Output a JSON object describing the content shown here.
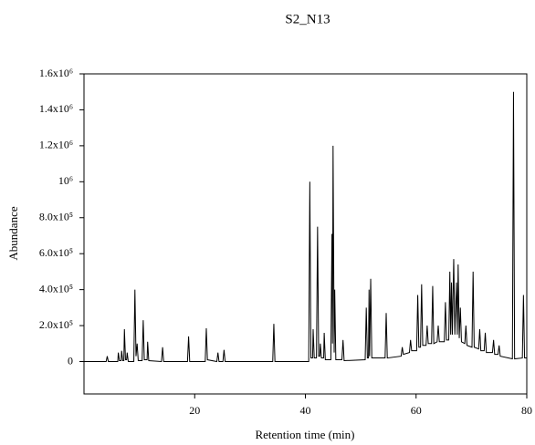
{
  "chart_data": {
    "type": "line",
    "title": "S2_N13",
    "x_label": "Retention time (min)",
    "y_label": "Abundance",
    "color": "#000000",
    "x": [
      0,
      4.0,
      4.2,
      4.4,
      6.1,
      6.2,
      6.4,
      6.7,
      6.8,
      7.0,
      7.2,
      7.3,
      7.5,
      7.7,
      7.8,
      8.0,
      9.0,
      9.2,
      9.4,
      9.6,
      9.8,
      10.5,
      10.7,
      10.9,
      11.4,
      11.5,
      11.7,
      14.0,
      14.2,
      14.4,
      18.7,
      18.9,
      19.1,
      21.9,
      22.1,
      22.3,
      24.0,
      24.2,
      24.4,
      25.1,
      25.3,
      25.5,
      34.1,
      34.3,
      34.5,
      40.6,
      40.8,
      41.0,
      41.3,
      41.4,
      41.6,
      42.0,
      42.2,
      42.4,
      42.6,
      42.7,
      42.9,
      43.3,
      43.4,
      43.6,
      44.6,
      44.8,
      44.9,
      45.0,
      45.2,
      45.3,
      45.5,
      46.6,
      46.8,
      47.0,
      50.8,
      51.0,
      51.2,
      51.4,
      51.5,
      51.6,
      51.8,
      52.0,
      54.4,
      54.6,
      54.8,
      57.3,
      57.5,
      57.7,
      58.8,
      59.0,
      59.2,
      60.1,
      60.3,
      60.5,
      60.8,
      61.0,
      61.2,
      61.8,
      62.0,
      62.2,
      62.8,
      63.0,
      63.2,
      63.8,
      64.0,
      64.2,
      65.1,
      65.3,
      65.5,
      65.9,
      66.1,
      66.25,
      66.4,
      66.55,
      66.8,
      67.0,
      67.3,
      67.45,
      67.6,
      67.8,
      68.0,
      68.2,
      68.8,
      69.0,
      69.2,
      70.1,
      70.3,
      70.5,
      71.3,
      71.5,
      71.7,
      72.3,
      72.5,
      72.7,
      73.8,
      74.0,
      74.2,
      74.8,
      75.0,
      75.2,
      77.4,
      77.6,
      77.8,
      79.2,
      79.4,
      79.6,
      80
    ],
    "values": [
      0,
      0,
      30000,
      0,
      0,
      50000,
      5000,
      5000,
      60000,
      5000,
      5000,
      180000,
      10000,
      10000,
      50000,
      0,
      0,
      400000,
      30000,
      100000,
      5000,
      5000,
      230000,
      10000,
      10000,
      110000,
      5000,
      0,
      80000,
      0,
      0,
      140000,
      0,
      0,
      185000,
      10000,
      0,
      50000,
      0,
      0,
      65000,
      0,
      0,
      210000,
      0,
      0,
      1000000,
      20000,
      20000,
      180000,
      20000,
      20000,
      750000,
      30000,
      30000,
      100000,
      20000,
      20000,
      160000,
      10000,
      10000,
      710000,
      100000,
      1200000,
      50000,
      400000,
      10000,
      10000,
      120000,
      5000,
      10000,
      300000,
      20000,
      20000,
      400000,
      30000,
      460000,
      20000,
      20000,
      270000,
      20000,
      30000,
      80000,
      40000,
      50000,
      120000,
      60000,
      60000,
      370000,
      80000,
      80000,
      430000,
      90000,
      90000,
      200000,
      100000,
      100000,
      420000,
      100000,
      110000,
      200000,
      110000,
      110000,
      330000,
      120000,
      120000,
      500000,
      150000,
      440000,
      150000,
      570000,
      150000,
      440000,
      150000,
      540000,
      130000,
      300000,
      110000,
      100000,
      200000,
      90000,
      80000,
      500000,
      80000,
      70000,
      180000,
      60000,
      60000,
      160000,
      50000,
      50000,
      120000,
      40000,
      40000,
      90000,
      30000,
      15000,
      1500000,
      15000,
      20000,
      370000,
      20000,
      20000
    ],
    "xlim": [
      0,
      80
    ],
    "xticks": [
      20,
      40,
      60,
      80
    ],
    "ylim": [
      -180000,
      1600000
    ],
    "yticks": [
      0,
      {
        "value": 200000,
        "label": "2.0x10⁵"
      },
      {
        "value": 400000,
        "label": "4.0x10⁵"
      },
      {
        "value": 600000,
        "label": "6.0x10⁵"
      },
      {
        "value": 800000,
        "label": "8.0x10⁵"
      },
      {
        "value": 1000000,
        "label": "10⁶"
      },
      {
        "value": 1200000,
        "label": "1.2x10⁶"
      },
      {
        "value": 1400000,
        "label": "1.4x10⁶"
      },
      {
        "value": 1600000,
        "label": "1.6x10⁶"
      }
    ]
  }
}
